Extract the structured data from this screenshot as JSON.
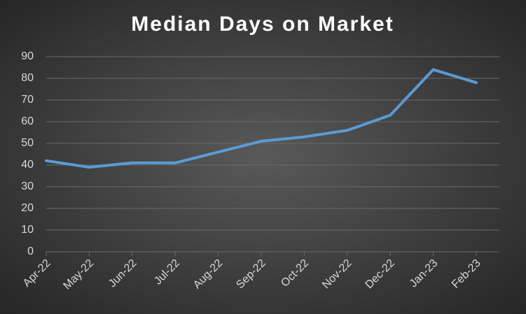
{
  "chart_data": {
    "type": "line",
    "title": "Median Days on Market",
    "categories": [
      "Apr-22",
      "May-22",
      "Jun-22",
      "Jul-22",
      "Aug-22",
      "Sep-22",
      "Oct-22",
      "Nov-22",
      "Dec-22",
      "Jan-23",
      "Feb-23"
    ],
    "values": [
      42,
      39,
      41,
      41,
      46,
      51,
      53,
      56,
      63,
      84,
      78
    ],
    "color": "#5b9bd5",
    "ylim": [
      0,
      90
    ],
    "yticks": [
      0,
      10,
      20,
      30,
      40,
      50,
      60,
      70,
      80,
      90
    ],
    "grid": true
  }
}
